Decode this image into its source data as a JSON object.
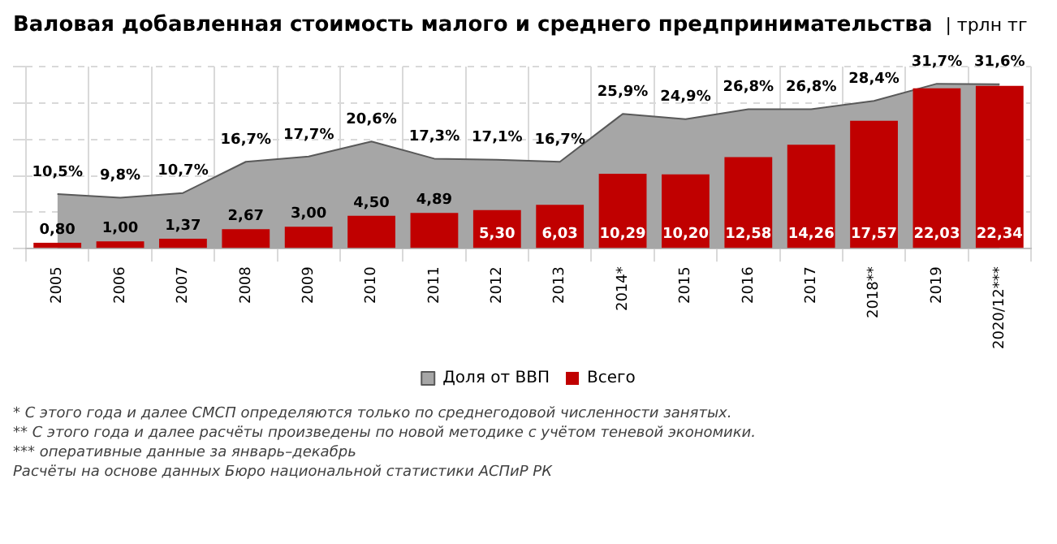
{
  "chart_data": {
    "type": "bar",
    "title": "Валовая добавленная стоимость малого и среднего предпринимательства",
    "subtitle": "| трлн тг",
    "categories": [
      "2005",
      "2006",
      "2007",
      "2008",
      "2009",
      "2010",
      "2011",
      "2012",
      "2013",
      "2014*",
      "2015",
      "2016",
      "2017",
      "2018**",
      "2019",
      "2020/12***"
    ],
    "series": [
      {
        "name": "Доля от ВВП",
        "type": "area",
        "axis": "y2",
        "color": "#a6a6a6",
        "values": [
          10.5,
          9.8,
          10.7,
          16.7,
          17.7,
          20.6,
          17.3,
          17.1,
          16.7,
          25.9,
          24.9,
          26.8,
          26.8,
          28.4,
          31.7,
          31.6
        ],
        "value_labels": [
          "10,5%",
          "9,8%",
          "10,7%",
          "16,7%",
          "17,7%",
          "20,6%",
          "17,3%",
          "17,1%",
          "16,7%",
          "25,9%",
          "24,9%",
          "26,8%",
          "26,8%",
          "28,4%",
          "31,7%",
          "31,6%"
        ]
      },
      {
        "name": "Всего",
        "color": "#c00000",
        "values": [
          0.8,
          1.0,
          1.37,
          2.67,
          3.0,
          4.5,
          4.89,
          5.3,
          6.03,
          10.29,
          10.2,
          12.58,
          14.26,
          17.57,
          22.03,
          22.34
        ],
        "value_labels": [
          "0,80",
          "1,00",
          "1,37",
          "2,67",
          "3,00",
          "4,50",
          "4,89",
          "5,30",
          "6,03",
          "10,29",
          "10,20",
          "12,58",
          "14,26",
          "17,57",
          "22,03",
          "22,34"
        ]
      }
    ],
    "grid": true,
    "legend": "bottom",
    "tick_labels": "x",
    "annotations": [
      "* С этого года и далее СМСП определяются только по среднегодовой численности занятых.",
      "** С этого года и далее расчёты произведены по новой методике с учётом теневой экономики.",
      "*** оперативные данные за январь–декабрь",
      "Расчёты на основе данных Бюро национальной статистики АСПиР РК"
    ]
  }
}
